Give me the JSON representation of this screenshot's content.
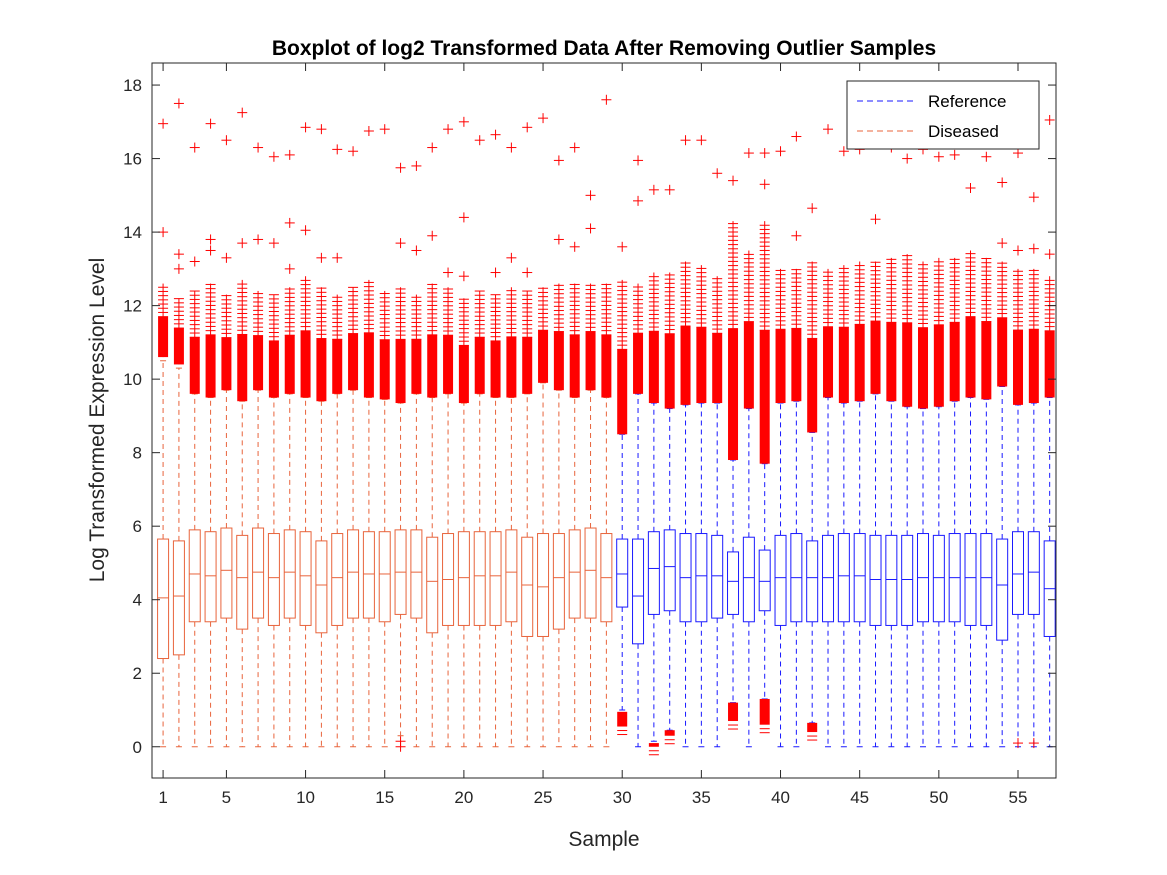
{
  "chart_data": {
    "type": "boxplot",
    "title": "Boxplot of log2 Transformed Data After Removing Outlier Samples",
    "xlabel": "Sample",
    "ylabel": "Log Transformed Expression Level",
    "xlim": [
      0.3,
      57.4
    ],
    "ylim": [
      -0.85,
      18.6
    ],
    "x_ticks": [
      1,
      5,
      10,
      15,
      20,
      25,
      30,
      35,
      40,
      45,
      50,
      55
    ],
    "y_ticks": [
      0,
      2,
      4,
      6,
      8,
      10,
      12,
      14,
      16,
      18
    ],
    "grid": false,
    "legend_position": "top-right",
    "legend": [
      {
        "label": "Reference",
        "color": "#1a1aff",
        "style": "dashed"
      },
      {
        "label": "Diseased",
        "color": "#e8643c",
        "style": "dashed"
      }
    ],
    "outlier_color": "#ff0000",
    "series": [
      {
        "name": "Diseased",
        "color": "#e8643c",
        "samples": [
          1,
          2,
          3,
          4,
          5,
          6,
          7,
          8,
          9,
          10,
          11,
          12,
          13,
          14,
          15,
          16,
          17,
          18,
          19,
          20,
          21,
          22,
          23,
          24,
          25,
          26,
          27,
          28,
          29
        ]
      },
      {
        "name": "Reference",
        "color": "#1a1aff",
        "samples": [
          30,
          31,
          32,
          33,
          34,
          35,
          36,
          37,
          38,
          39,
          40,
          41,
          42,
          43,
          44,
          45,
          46,
          47,
          48,
          49,
          50,
          51,
          52,
          53,
          54,
          55,
          56,
          57
        ]
      }
    ],
    "boxes": [
      {
        "sample": 1,
        "q1": 2.4,
        "median": 4.05,
        "q3": 5.65,
        "whisker_low": 0,
        "whisker_high": 10.5,
        "outlier_low": 10.6,
        "outlier_high": 12.6,
        "sparse_outliers": [
          14.0,
          16.95
        ]
      },
      {
        "sample": 2,
        "q1": 2.5,
        "median": 4.1,
        "q3": 5.6,
        "whisker_low": 0,
        "whisker_high": 10.3,
        "outlier_low": 10.4,
        "outlier_high": 12.2,
        "sparse_outliers": [
          13.0,
          13.4,
          17.5
        ]
      },
      {
        "sample": 3,
        "q1": 3.4,
        "median": 4.7,
        "q3": 5.9,
        "whisker_low": 0,
        "whisker_high": 9.6,
        "outlier_low": 9.6,
        "outlier_high": 12.4,
        "sparse_outliers": [
          13.2,
          16.3
        ]
      },
      {
        "sample": 4,
        "q1": 3.4,
        "median": 4.65,
        "q3": 5.85,
        "whisker_low": 0,
        "whisker_high": 9.5,
        "outlier_low": 9.5,
        "outlier_high": 12.6,
        "sparse_outliers": [
          13.5,
          13.8,
          16.95
        ]
      },
      {
        "sample": 5,
        "q1": 3.5,
        "median": 4.8,
        "q3": 5.95,
        "whisker_low": 0,
        "whisker_high": 9.7,
        "outlier_low": 9.7,
        "outlier_high": 12.3,
        "sparse_outliers": [
          13.3,
          16.5
        ]
      },
      {
        "sample": 6,
        "q1": 3.2,
        "median": 4.6,
        "q3": 5.75,
        "whisker_low": 0,
        "whisker_high": 9.4,
        "outlier_low": 9.4,
        "outlier_high": 12.7,
        "sparse_outliers": [
          13.7,
          17.25
        ]
      },
      {
        "sample": 7,
        "q1": 3.5,
        "median": 4.75,
        "q3": 5.95,
        "whisker_low": 0,
        "whisker_high": 9.7,
        "outlier_low": 9.7,
        "outlier_high": 12.4,
        "sparse_outliers": [
          13.8,
          16.3
        ]
      },
      {
        "sample": 8,
        "q1": 3.3,
        "median": 4.6,
        "q3": 5.8,
        "whisker_low": 0,
        "whisker_high": 9.5,
        "outlier_low": 9.5,
        "outlier_high": 12.3,
        "sparse_outliers": [
          13.7,
          16.05
        ]
      },
      {
        "sample": 9,
        "q1": 3.5,
        "median": 4.75,
        "q3": 5.9,
        "whisker_low": 0,
        "whisker_high": 9.6,
        "outlier_low": 9.6,
        "outlier_high": 12.5,
        "sparse_outliers": [
          13.0,
          14.25,
          16.1
        ]
      },
      {
        "sample": 10,
        "q1": 3.3,
        "median": 4.65,
        "q3": 5.85,
        "whisker_low": 0,
        "whisker_high": 9.5,
        "outlier_low": 9.5,
        "outlier_high": 12.8,
        "sparse_outliers": [
          14.05,
          16.85
        ]
      },
      {
        "sample": 11,
        "q1": 3.1,
        "median": 4.4,
        "q3": 5.6,
        "whisker_low": 0,
        "whisker_high": 9.4,
        "outlier_low": 9.4,
        "outlier_high": 12.5,
        "sparse_outliers": [
          13.3,
          16.8
        ]
      },
      {
        "sample": 12,
        "q1": 3.3,
        "median": 4.6,
        "q3": 5.8,
        "whisker_low": 0,
        "whisker_high": 9.6,
        "outlier_low": 9.6,
        "outlier_high": 12.3,
        "sparse_outliers": [
          13.3,
          16.25
        ]
      },
      {
        "sample": 13,
        "q1": 3.5,
        "median": 4.75,
        "q3": 5.9,
        "whisker_low": 0,
        "whisker_high": 9.7,
        "outlier_low": 9.7,
        "outlier_high": 12.5,
        "sparse_outliers": [
          16.2
        ]
      },
      {
        "sample": 14,
        "q1": 3.5,
        "median": 4.7,
        "q3": 5.85,
        "whisker_low": 0,
        "whisker_high": 9.5,
        "outlier_low": 9.5,
        "outlier_high": 12.7,
        "sparse_outliers": [
          16.75
        ]
      },
      {
        "sample": 15,
        "q1": 3.4,
        "median": 4.7,
        "q3": 5.85,
        "whisker_low": 0,
        "whisker_high": 9.45,
        "outlier_low": 9.45,
        "outlier_high": 12.4,
        "sparse_outliers": [
          16.8
        ]
      },
      {
        "sample": 16,
        "q1": 3.6,
        "median": 4.75,
        "q3": 5.9,
        "whisker_low": 0.3,
        "whisker_high": 9.35,
        "outlier_low": 9.35,
        "outlier_high": 12.5,
        "sparse_outliers": [
          13.7,
          15.75,
          0.0,
          0.15
        ]
      },
      {
        "sample": 17,
        "q1": 3.5,
        "median": 4.75,
        "q3": 5.9,
        "whisker_low": 0,
        "whisker_high": 9.6,
        "outlier_low": 9.6,
        "outlier_high": 12.3,
        "sparse_outliers": [
          13.5,
          15.8
        ]
      },
      {
        "sample": 18,
        "q1": 3.1,
        "median": 4.5,
        "q3": 5.7,
        "whisker_low": 0,
        "whisker_high": 9.5,
        "outlier_low": 9.5,
        "outlier_high": 12.6,
        "sparse_outliers": [
          13.9,
          16.3
        ]
      },
      {
        "sample": 19,
        "q1": 3.3,
        "median": 4.55,
        "q3": 5.8,
        "whisker_low": 0,
        "whisker_high": 9.6,
        "outlier_low": 9.6,
        "outlier_high": 12.5,
        "sparse_outliers": [
          12.9,
          16.8
        ]
      },
      {
        "sample": 20,
        "q1": 3.3,
        "median": 4.6,
        "q3": 5.85,
        "whisker_low": 0,
        "whisker_high": 9.35,
        "outlier_low": 9.35,
        "outlier_high": 12.2,
        "sparse_outliers": [
          12.8,
          14.4,
          17.0
        ]
      },
      {
        "sample": 21,
        "q1": 3.3,
        "median": 4.65,
        "q3": 5.85,
        "whisker_low": 0,
        "whisker_high": 9.6,
        "outlier_low": 9.6,
        "outlier_high": 12.4,
        "sparse_outliers": [
          16.5
        ]
      },
      {
        "sample": 22,
        "q1": 3.3,
        "median": 4.65,
        "q3": 5.85,
        "whisker_low": 0,
        "whisker_high": 9.5,
        "outlier_low": 9.5,
        "outlier_high": 12.3,
        "sparse_outliers": [
          12.9,
          16.65
        ]
      },
      {
        "sample": 23,
        "q1": 3.4,
        "median": 4.75,
        "q3": 5.9,
        "whisker_low": 0,
        "whisker_high": 9.5,
        "outlier_low": 9.5,
        "outlier_high": 12.5,
        "sparse_outliers": [
          13.3,
          16.3
        ]
      },
      {
        "sample": 24,
        "q1": 3.0,
        "median": 4.4,
        "q3": 5.7,
        "whisker_low": 0,
        "whisker_high": 9.6,
        "outlier_low": 9.6,
        "outlier_high": 12.4,
        "sparse_outliers": [
          12.9,
          16.85
        ]
      },
      {
        "sample": 25,
        "q1": 3.0,
        "median": 4.35,
        "q3": 5.8,
        "whisker_low": 0,
        "whisker_high": 9.9,
        "outlier_low": 9.9,
        "outlier_high": 12.5,
        "sparse_outliers": [
          17.1
        ]
      },
      {
        "sample": 26,
        "q1": 3.2,
        "median": 4.6,
        "q3": 5.8,
        "whisker_low": 0,
        "whisker_high": 9.7,
        "outlier_low": 9.7,
        "outlier_high": 12.6,
        "sparse_outliers": [
          13.8,
          15.95
        ]
      },
      {
        "sample": 27,
        "q1": 3.5,
        "median": 4.75,
        "q3": 5.9,
        "whisker_low": 0,
        "whisker_high": 9.5,
        "outlier_low": 9.5,
        "outlier_high": 12.6,
        "sparse_outliers": [
          13.6,
          16.3
        ]
      },
      {
        "sample": 28,
        "q1": 3.5,
        "median": 4.8,
        "q3": 5.95,
        "whisker_low": 0,
        "whisker_high": 9.7,
        "outlier_low": 9.7,
        "outlier_high": 12.6,
        "sparse_outliers": [
          14.1,
          15.0
        ]
      },
      {
        "sample": 29,
        "q1": 3.4,
        "median": 4.6,
        "q3": 5.8,
        "whisker_low": 0,
        "whisker_high": 9.5,
        "outlier_low": 9.5,
        "outlier_high": 12.6,
        "sparse_outliers": [
          17.6
        ]
      },
      {
        "sample": 30,
        "q1": 3.8,
        "median": 4.7,
        "q3": 5.65,
        "whisker_low": 1.0,
        "whisker_high": 8.5,
        "outlier_low": 8.5,
        "outlier_high": 12.7,
        "sparse_outliers": [
          13.6
        ],
        "low_outlier_low": 0.55,
        "low_outlier_high": 0.95
      },
      {
        "sample": 31,
        "q1": 2.8,
        "median": 4.1,
        "q3": 5.65,
        "whisker_low": 0,
        "whisker_high": 9.6,
        "outlier_low": 9.6,
        "outlier_high": 12.6,
        "sparse_outliers": [
          14.85,
          15.95
        ]
      },
      {
        "sample": 32,
        "q1": 3.6,
        "median": 4.85,
        "q3": 5.85,
        "whisker_low": 0.15,
        "whisker_high": 9.35,
        "outlier_low": 9.35,
        "outlier_high": 12.9,
        "sparse_outliers": [
          15.15
        ],
        "low_outlier_low": 0.0,
        "low_outlier_high": 0.1
      },
      {
        "sample": 33,
        "q1": 3.7,
        "median": 4.9,
        "q3": 5.9,
        "whisker_low": 0.45,
        "whisker_high": 9.2,
        "outlier_low": 9.2,
        "outlier_high": 12.9,
        "sparse_outliers": [
          15.15
        ],
        "low_outlier_low": 0.3,
        "low_outlier_high": 0.45
      },
      {
        "sample": 34,
        "q1": 3.4,
        "median": 4.6,
        "q3": 5.8,
        "whisker_low": 0,
        "whisker_high": 9.3,
        "outlier_low": 9.3,
        "outlier_high": 13.2,
        "sparse_outliers": [
          16.5
        ]
      },
      {
        "sample": 35,
        "q1": 3.4,
        "median": 4.65,
        "q3": 5.8,
        "whisker_low": 0,
        "whisker_high": 9.35,
        "outlier_low": 9.35,
        "outlier_high": 13.1,
        "sparse_outliers": [
          16.5
        ]
      },
      {
        "sample": 36,
        "q1": 3.5,
        "median": 4.65,
        "q3": 5.75,
        "whisker_low": 0,
        "whisker_high": 9.35,
        "outlier_low": 9.35,
        "outlier_high": 12.8,
        "sparse_outliers": [
          15.6
        ]
      },
      {
        "sample": 37,
        "q1": 3.6,
        "median": 4.5,
        "q3": 5.3,
        "whisker_low": 1.2,
        "whisker_high": 7.8,
        "outlier_low": 7.8,
        "outlier_high": 14.3,
        "sparse_outliers": [
          15.4
        ],
        "low_outlier_low": 0.7,
        "low_outlier_high": 1.2
      },
      {
        "sample": 38,
        "q1": 3.4,
        "median": 4.6,
        "q3": 5.7,
        "whisker_low": 0,
        "whisker_high": 9.2,
        "outlier_low": 9.2,
        "outlier_high": 13.5,
        "sparse_outliers": [
          16.15
        ]
      },
      {
        "sample": 39,
        "q1": 3.7,
        "median": 4.5,
        "q3": 5.35,
        "whisker_low": 1.3,
        "whisker_high": 7.7,
        "outlier_low": 7.7,
        "outlier_high": 14.3,
        "sparse_outliers": [
          15.3,
          16.15
        ],
        "low_outlier_low": 0.6,
        "low_outlier_high": 1.3
      },
      {
        "sample": 40,
        "q1": 3.3,
        "median": 4.6,
        "q3": 5.75,
        "whisker_low": 0,
        "whisker_high": 9.35,
        "outlier_low": 9.35,
        "outlier_high": 13.0,
        "sparse_outliers": [
          16.2
        ]
      },
      {
        "sample": 41,
        "q1": 3.4,
        "median": 4.6,
        "q3": 5.8,
        "whisker_low": 0,
        "whisker_high": 9.4,
        "outlier_low": 9.4,
        "outlier_high": 13.0,
        "sparse_outliers": [
          13.9,
          16.6
        ]
      },
      {
        "sample": 42,
        "q1": 3.4,
        "median": 4.6,
        "q3": 5.6,
        "whisker_low": 0.65,
        "whisker_high": 8.55,
        "outlier_low": 8.55,
        "outlier_high": 13.2,
        "sparse_outliers": [
          14.65
        ],
        "low_outlier_low": 0.4,
        "low_outlier_high": 0.65
      },
      {
        "sample": 43,
        "q1": 3.4,
        "median": 4.6,
        "q3": 5.75,
        "whisker_low": 0,
        "whisker_high": 9.5,
        "outlier_low": 9.5,
        "outlier_high": 13.0,
        "sparse_outliers": [
          16.8
        ]
      },
      {
        "sample": 44,
        "q1": 3.4,
        "median": 4.65,
        "q3": 5.8,
        "whisker_low": 0,
        "whisker_high": 9.35,
        "outlier_low": 9.35,
        "outlier_high": 13.1,
        "sparse_outliers": [
          16.2
        ]
      },
      {
        "sample": 45,
        "q1": 3.4,
        "median": 4.65,
        "q3": 5.8,
        "whisker_low": 0,
        "whisker_high": 9.4,
        "outlier_low": 9.4,
        "outlier_high": 13.2,
        "sparse_outliers": [
          16.25
        ]
      },
      {
        "sample": 46,
        "q1": 3.3,
        "median": 4.55,
        "q3": 5.75,
        "whisker_low": 0,
        "whisker_high": 9.6,
        "outlier_low": 9.6,
        "outlier_high": 13.2,
        "sparse_outliers": [
          14.35
        ]
      },
      {
        "sample": 47,
        "q1": 3.3,
        "median": 4.55,
        "q3": 5.75,
        "whisker_low": 0,
        "whisker_high": 9.4,
        "outlier_low": 9.4,
        "outlier_high": 13.3,
        "sparse_outliers": [
          16.3
        ]
      },
      {
        "sample": 48,
        "q1": 3.3,
        "median": 4.55,
        "q3": 5.75,
        "whisker_low": 0,
        "whisker_high": 9.25,
        "outlier_low": 9.25,
        "outlier_high": 13.4,
        "sparse_outliers": [
          16.0
        ]
      },
      {
        "sample": 49,
        "q1": 3.4,
        "median": 4.6,
        "q3": 5.8,
        "whisker_low": 0,
        "whisker_high": 9.2,
        "outlier_low": 9.2,
        "outlier_high": 13.2,
        "sparse_outliers": [
          16.25
        ]
      },
      {
        "sample": 50,
        "q1": 3.4,
        "median": 4.6,
        "q3": 5.75,
        "whisker_low": 0,
        "whisker_high": 9.25,
        "outlier_low": 9.25,
        "outlier_high": 13.3,
        "sparse_outliers": [
          16.05
        ]
      },
      {
        "sample": 51,
        "q1": 3.4,
        "median": 4.6,
        "q3": 5.8,
        "whisker_low": 0,
        "whisker_high": 9.4,
        "outlier_low": 9.4,
        "outlier_high": 13.3,
        "sparse_outliers": [
          16.1
        ]
      },
      {
        "sample": 52,
        "q1": 3.3,
        "median": 4.6,
        "q3": 5.8,
        "whisker_low": 0,
        "whisker_high": 9.5,
        "outlier_low": 9.5,
        "outlier_high": 13.5,
        "sparse_outliers": [
          15.2
        ]
      },
      {
        "sample": 53,
        "q1": 3.3,
        "median": 4.6,
        "q3": 5.8,
        "whisker_low": 0,
        "whisker_high": 9.45,
        "outlier_low": 9.45,
        "outlier_high": 13.3,
        "sparse_outliers": [
          16.05
        ]
      },
      {
        "sample": 54,
        "q1": 2.9,
        "median": 4.4,
        "q3": 5.65,
        "whisker_low": 0,
        "whisker_high": 9.8,
        "outlier_low": 9.8,
        "outlier_high": 13.2,
        "sparse_outliers": [
          13.7,
          15.35
        ]
      },
      {
        "sample": 55,
        "q1": 3.6,
        "median": 4.7,
        "q3": 5.85,
        "whisker_low": 0,
        "whisker_high": 9.3,
        "outlier_low": 9.3,
        "outlier_high": 13.0,
        "sparse_outliers": [
          13.5,
          16.15,
          0.1
        ]
      },
      {
        "sample": 56,
        "q1": 3.6,
        "median": 4.75,
        "q3": 5.85,
        "whisker_low": 0,
        "whisker_high": 9.35,
        "outlier_low": 9.35,
        "outlier_high": 13.0,
        "sparse_outliers": [
          13.55,
          14.95,
          0.1
        ]
      },
      {
        "sample": 57,
        "q1": 3.0,
        "median": 4.3,
        "q3": 5.6,
        "whisker_low": 0,
        "whisker_high": 9.5,
        "outlier_low": 9.5,
        "outlier_high": 12.8,
        "sparse_outliers": [
          13.4,
          17.05
        ]
      }
    ]
  }
}
